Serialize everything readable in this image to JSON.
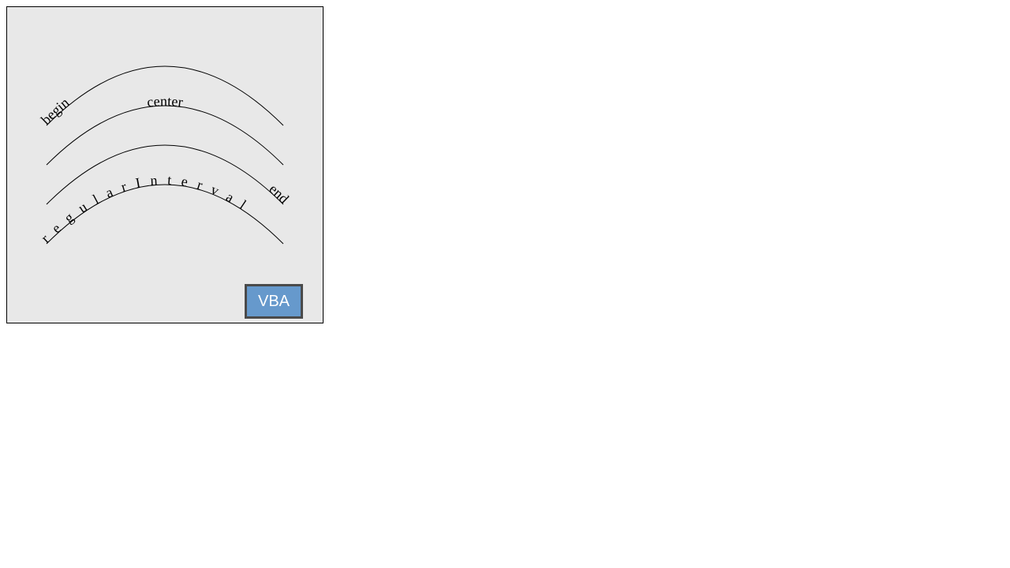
{
  "curves": [
    {
      "id": "arc1",
      "label": "begin",
      "startOffset": "0%",
      "textAnchor": "start",
      "letterSpacing": 0
    },
    {
      "id": "arc2",
      "label": "center",
      "startOffset": "50%",
      "textAnchor": "middle",
      "letterSpacing": 0
    },
    {
      "id": "arc3",
      "label": "end",
      "startOffset": "100%",
      "textAnchor": "end",
      "letterSpacing": 0
    },
    {
      "id": "arc4",
      "label": "regularInterval",
      "startOffset": "0%",
      "textAnchor": "start",
      "letterSpacing": 12.1
    }
  ],
  "button": {
    "label": "VBA",
    "color": "#6699cc"
  },
  "colors": {
    "panel_background": "#e8e8e8",
    "stroke": "#000000",
    "button_border": "#4a4a4a"
  }
}
